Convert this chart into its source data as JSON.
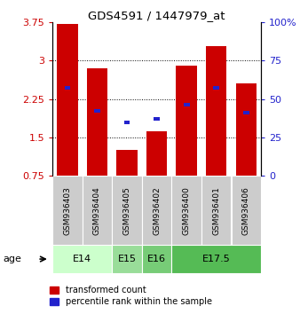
{
  "title": "GDS4591 / 1447979_at",
  "samples": [
    "GSM936403",
    "GSM936404",
    "GSM936405",
    "GSM936402",
    "GSM936400",
    "GSM936401",
    "GSM936406"
  ],
  "red_values": [
    3.72,
    2.85,
    1.25,
    1.62,
    2.9,
    3.28,
    2.55
  ],
  "blue_percentiles": [
    57,
    42,
    35,
    37,
    46,
    57,
    41
  ],
  "ylim_left": [
    0.75,
    3.75
  ],
  "ylim_right": [
    0,
    100
  ],
  "yticks_left": [
    0.75,
    1.5,
    2.25,
    3.0,
    3.75
  ],
  "yticks_right": [
    0,
    25,
    50,
    75,
    100
  ],
  "ytick_labels_left": [
    "0.75",
    "1.5",
    "2.25",
    "3",
    "3.75"
  ],
  "ytick_labels_right": [
    "0",
    "25",
    "50",
    "75",
    "100%"
  ],
  "bar_bottom": 0.75,
  "red_color": "#cc0000",
  "blue_color": "#2222cc",
  "sample_box_color": "#cccccc",
  "legend_red_label": "transformed count",
  "legend_blue_label": "percentile rank within the sample",
  "bar_width": 0.7,
  "blue_bar_width": 0.2,
  "blue_bar_height": 0.07,
  "age_groups": [
    {
      "label": "E14",
      "start": 0,
      "end": 1,
      "color": "#ccffcc"
    },
    {
      "label": "E15",
      "start": 2,
      "end": 2,
      "color": "#99dd99"
    },
    {
      "label": "E16",
      "start": 3,
      "end": 3,
      "color": "#77cc77"
    },
    {
      "label": "E17.5",
      "start": 4,
      "end": 6,
      "color": "#55bb55"
    }
  ]
}
